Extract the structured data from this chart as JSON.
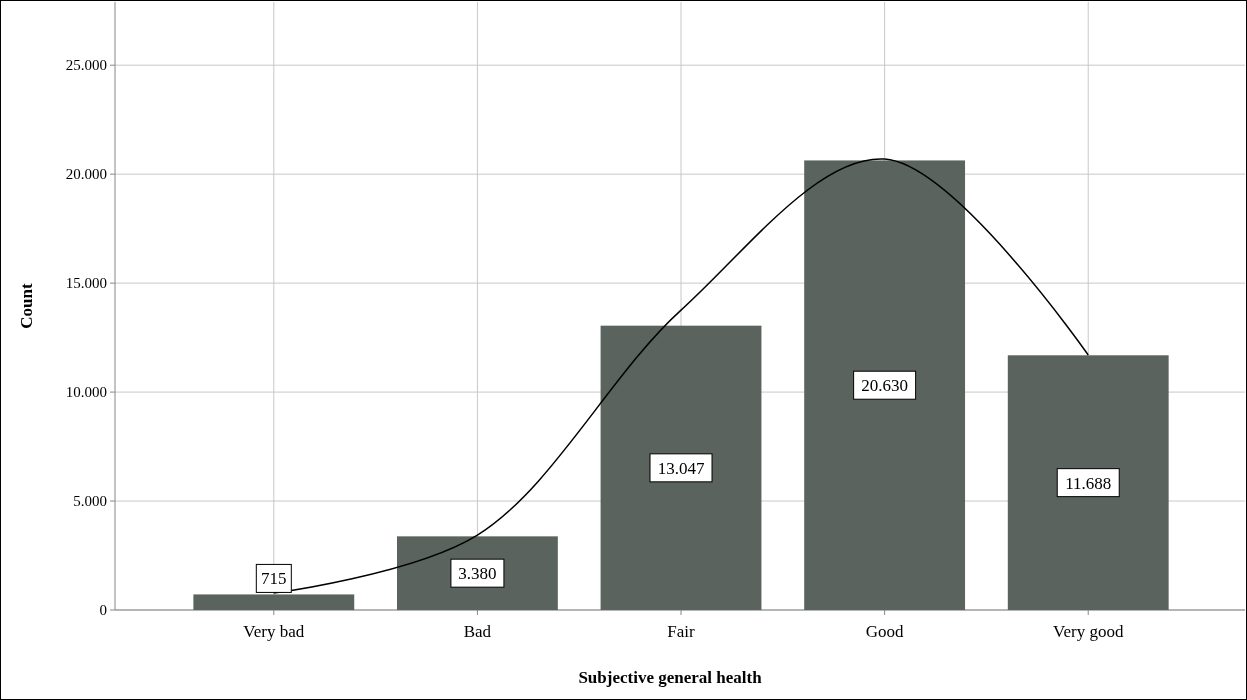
{
  "chart_data": {
    "type": "bar",
    "xlabel": "Subjective general health",
    "ylabel": "Count",
    "categories": [
      "Very bad",
      "Bad",
      "Fair",
      "Good",
      "Very good"
    ],
    "series": [
      {
        "color": "#5a635d",
        "values": [
          715,
          3380,
          13047,
          20630,
          11688
        ],
        "value_labels": [
          "715",
          "3.380",
          "13.047",
          "20.630",
          "11.688"
        ]
      },
      {
        "type": "line",
        "color": "#000000",
        "values": [
          780,
          3440,
          13760,
          20690,
          11700
        ]
      }
    ],
    "ylim": [
      0,
      27900
    ],
    "yticks": [
      0,
      {
        "value": 5000,
        "label": "5.000"
      },
      {
        "value": 10000,
        "label": "10.000"
      },
      {
        "value": 15000,
        "label": "15.000"
      },
      {
        "value": 20000,
        "label": "20.000"
      },
      {
        "value": 25000,
        "label": "25.000"
      }
    ],
    "grid": true
  }
}
